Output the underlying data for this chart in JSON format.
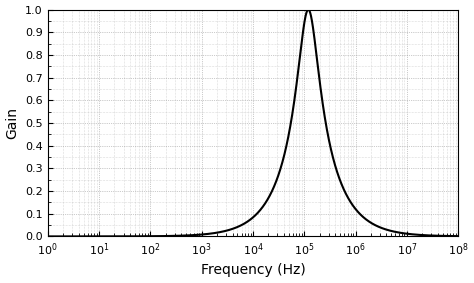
{
  "title": "",
  "xlabel": "Frequency (Hz)",
  "ylabel": "Gain",
  "xmin": 1.0,
  "xmax": 100000000.0,
  "ymin": 0,
  "ymax": 1,
  "f0": 120000.0,
  "Q": 1.0,
  "line_color": "#000000",
  "line_width": 1.5,
  "background_color": "#ffffff",
  "grid_major_color": "#999999",
  "grid_minor_color": "#bbbbbb",
  "yticks": [
    0,
    0.1,
    0.2,
    0.3,
    0.4,
    0.5,
    0.6,
    0.7,
    0.8,
    0.9,
    1
  ],
  "xlabel_fontsize": 10,
  "ylabel_fontsize": 10,
  "tick_fontsize": 8,
  "fig_width": 4.74,
  "fig_height": 2.83,
  "dpi": 100
}
